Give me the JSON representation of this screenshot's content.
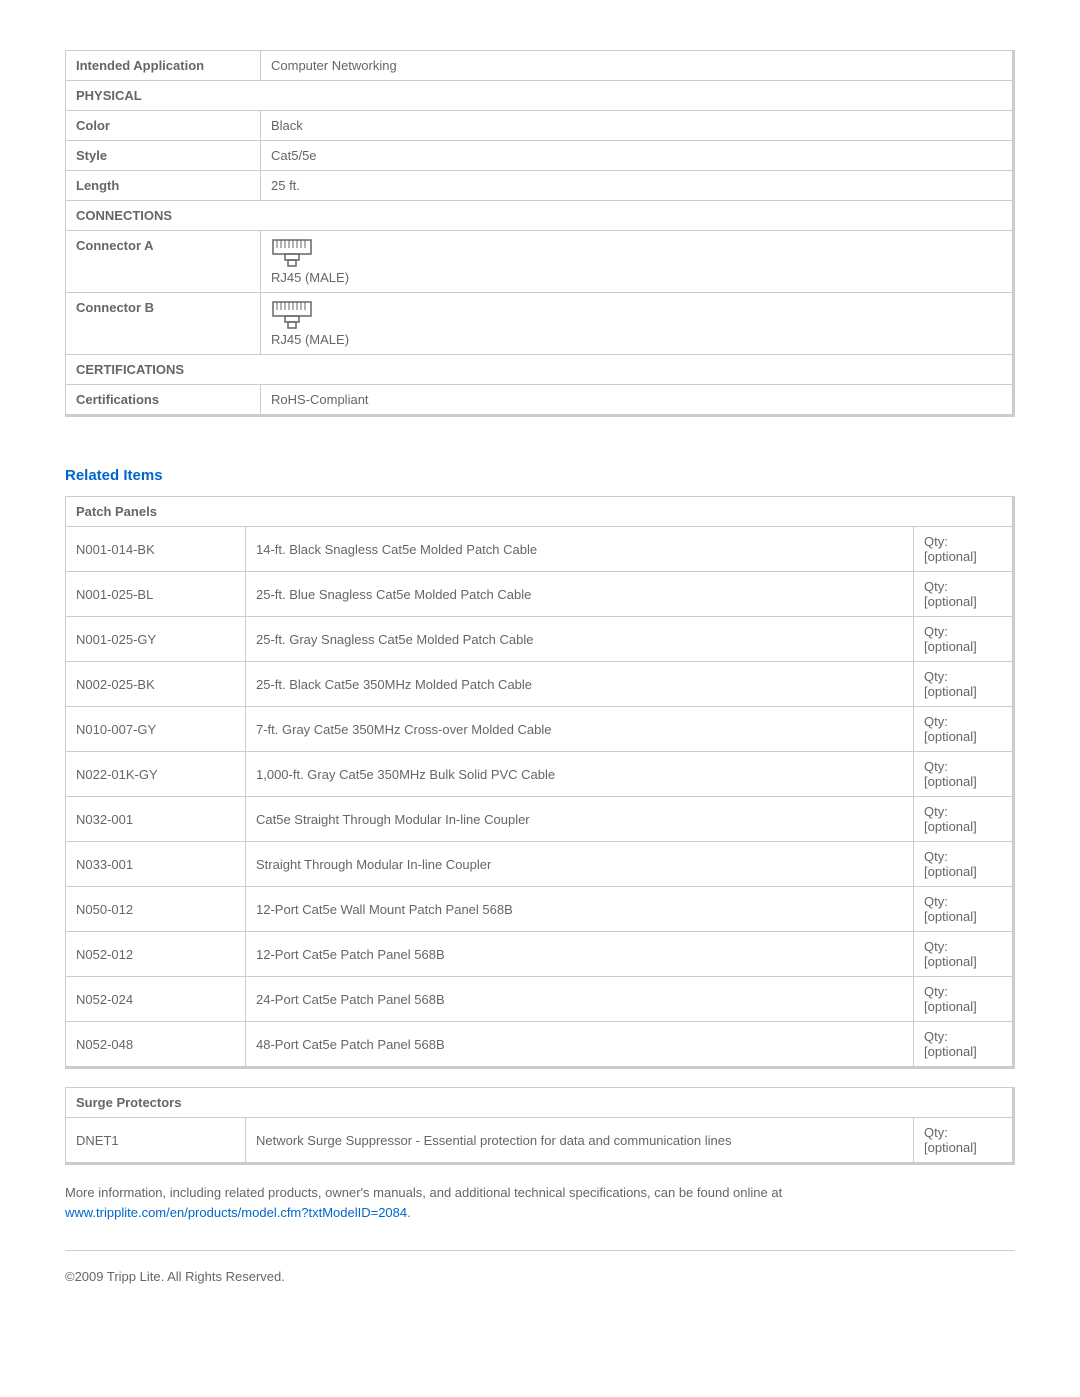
{
  "specs": {
    "intended_application": {
      "label": "Intended Application",
      "value": "Computer Networking"
    },
    "physical_header": "PHYSICAL",
    "color": {
      "label": "Color",
      "value": "Black"
    },
    "style": {
      "label": "Style",
      "value": "Cat5/5e"
    },
    "length": {
      "label": "Length",
      "value": "25 ft."
    },
    "connections_header": "CONNECTIONS",
    "connector_a": {
      "label": "Connector A",
      "value": "RJ45 (MALE)"
    },
    "connector_b": {
      "label": "Connector B",
      "value": "RJ45 (MALE)"
    },
    "certifications_header": "CERTIFICATIONS",
    "certifications": {
      "label": "Certifications",
      "value": "RoHS-Compliant"
    }
  },
  "related_heading": "Related Items",
  "patch_panels": {
    "header": "Patch Panels",
    "items": [
      {
        "sku": "N001-014-BK",
        "desc": "14-ft. Black Snagless Cat5e Molded Patch Cable",
        "qty": "Qty: [optional]"
      },
      {
        "sku": "N001-025-BL",
        "desc": "25-ft. Blue Snagless Cat5e Molded Patch Cable",
        "qty": "Qty: [optional]"
      },
      {
        "sku": "N001-025-GY",
        "desc": "25-ft. Gray Snagless Cat5e Molded Patch Cable",
        "qty": "Qty: [optional]"
      },
      {
        "sku": "N002-025-BK",
        "desc": "25-ft. Black Cat5e 350MHz Molded Patch Cable",
        "qty": "Qty: [optional]"
      },
      {
        "sku": "N010-007-GY",
        "desc": "7-ft. Gray Cat5e 350MHz Cross-over Molded Cable",
        "qty": "Qty: [optional]"
      },
      {
        "sku": "N022-01K-GY",
        "desc": "1,000-ft. Gray Cat5e 350MHz Bulk Solid PVC Cable",
        "qty": "Qty: [optional]"
      },
      {
        "sku": "N032-001",
        "desc": "Cat5e Straight Through Modular In-line Coupler",
        "qty": "Qty: [optional]"
      },
      {
        "sku": "N033-001",
        "desc": "Straight Through Modular In-line Coupler",
        "qty": "Qty: [optional]"
      },
      {
        "sku": "N050-012",
        "desc": "12-Port Cat5e Wall Mount Patch Panel 568B",
        "qty": "Qty: [optional]"
      },
      {
        "sku": "N052-012",
        "desc": "12-Port Cat5e Patch Panel 568B",
        "qty": "Qty: [optional]"
      },
      {
        "sku": "N052-024",
        "desc": "24-Port Cat5e Patch Panel 568B",
        "qty": "Qty: [optional]"
      },
      {
        "sku": "N052-048",
        "desc": "48-Port Cat5e Patch Panel 568B",
        "qty": "Qty: [optional]"
      }
    ]
  },
  "surge_protectors": {
    "header": "Surge Protectors",
    "items": [
      {
        "sku": "DNET1",
        "desc": "Network Surge Suppressor - Essential protection for data and communication lines",
        "qty": "Qty: [optional]"
      }
    ]
  },
  "more_info_text": "More information, including related products, owner's manuals, and additional technical specifications, can be found online at ",
  "more_info_link": "www.tripplite.com/en/products/model.cfm?txtModelID=2084",
  "copyright": "©2009 Tripp Lite. All Rights Reserved.",
  "table_style": {
    "border_color": "#cccccc",
    "shadow_color": "#cccccc",
    "text_color": "#666666",
    "link_color": "#0066cc",
    "font_size": 13,
    "label_col_width": 195,
    "sku_col_width": 180,
    "qty_col_width": 100
  }
}
